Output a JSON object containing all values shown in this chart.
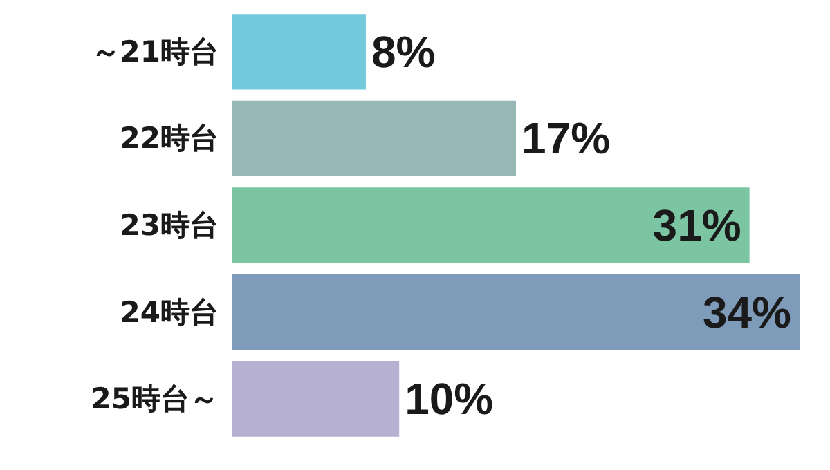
{
  "chart_data": {
    "type": "bar",
    "orientation": "horizontal",
    "categories": [
      "～21時台",
      "22時台",
      "23時台",
      "24時台",
      "25時台～"
    ],
    "values": [
      8,
      17,
      31,
      34,
      10
    ],
    "colors": [
      "#73c9dc",
      "#97b7b6",
      "#7cc5a3",
      "#7e9bba",
      "#b6b1d0"
    ],
    "value_labels": [
      "8%",
      "17%",
      "31%",
      "34%",
      "10%"
    ]
  }
}
